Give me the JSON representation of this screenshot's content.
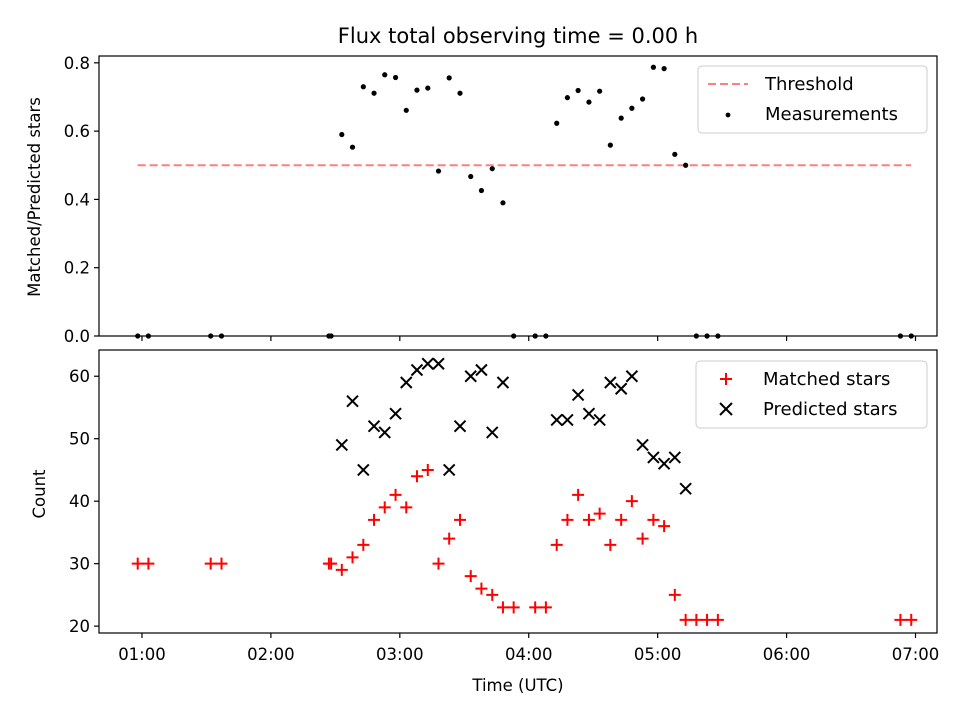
{
  "chart_data": [
    {
      "type": "scatter",
      "title": "Flux total observing time = 0.00 h",
      "xlabel": "",
      "ylabel": "Matched/Predicted stars",
      "ylim": [
        0,
        0.82
      ],
      "yticks": [
        0.0,
        0.2,
        0.4,
        0.6,
        0.8
      ],
      "ytick_labels": [
        "0.0",
        "0.2",
        "0.4",
        "0.6",
        "0.8"
      ],
      "xlim": [
        0.6667,
        7.1667
      ],
      "xticks": [
        1,
        2,
        3,
        4,
        5,
        6,
        7
      ],
      "legend_position": "top-right",
      "threshold": {
        "name": "Threshold",
        "value": 0.5,
        "x": [
          0.9667,
          6.9667
        ],
        "color": "#ff7f7f"
      },
      "series": [
        {
          "name": "Measurements",
          "color": "#000000",
          "x": [
            0.967,
            1.05,
            1.533,
            1.617,
            2.45,
            2.467,
            2.55,
            2.633,
            2.717,
            2.8,
            2.883,
            2.967,
            3.05,
            3.133,
            3.217,
            3.3,
            3.383,
            3.467,
            3.55,
            3.633,
            3.717,
            3.8,
            3.883,
            4.05,
            4.133,
            4.217,
            4.3,
            4.383,
            4.467,
            4.55,
            4.633,
            4.717,
            4.8,
            4.883,
            4.967,
            5.05,
            5.133,
            5.217,
            5.3,
            5.383,
            5.467,
            6.883,
            6.967
          ],
          "y": [
            0.0,
            0.0,
            0.0,
            0.0,
            0.0,
            0.0,
            0.59,
            0.553,
            0.73,
            0.711,
            0.765,
            0.757,
            0.661,
            0.72,
            0.726,
            0.483,
            0.756,
            0.711,
            0.467,
            0.426,
            0.49,
            0.39,
            0.0,
            0.0,
            0.0,
            0.623,
            0.698,
            0.719,
            0.685,
            0.717,
            0.559,
            0.638,
            0.667,
            0.694,
            0.787,
            0.783,
            0.532,
            0.5,
            0.0,
            0.0,
            0.0,
            0.0,
            0.0
          ]
        }
      ]
    },
    {
      "type": "scatter",
      "title": "",
      "xlabel": "Time (UTC)",
      "ylabel": "Count",
      "ylim": [
        18.9,
        64.2
      ],
      "yticks": [
        20,
        30,
        40,
        50,
        60
      ],
      "ytick_labels": [
        "20",
        "30",
        "40",
        "50",
        "60"
      ],
      "xlim": [
        0.6667,
        7.1667
      ],
      "xticks": [
        1,
        2,
        3,
        4,
        5,
        6,
        7
      ],
      "xtick_labels": [
        "01:00",
        "02:00",
        "03:00",
        "04:00",
        "05:00",
        "06:00",
        "07:00"
      ],
      "legend_position": "top-right",
      "series": [
        {
          "name": "Matched stars",
          "marker": "plus",
          "color": "#ff0000",
          "x": [
            0.967,
            1.05,
            1.533,
            1.617,
            2.45,
            2.467,
            2.55,
            2.633,
            2.717,
            2.8,
            2.883,
            2.967,
            3.05,
            3.133,
            3.217,
            3.3,
            3.383,
            3.467,
            3.55,
            3.633,
            3.717,
            3.8,
            3.883,
            4.05,
            4.133,
            4.217,
            4.3,
            4.383,
            4.467,
            4.55,
            4.633,
            4.717,
            4.8,
            4.883,
            4.967,
            5.05,
            5.133,
            5.217,
            5.3,
            5.383,
            5.467,
            6.883,
            6.967
          ],
          "y": [
            30,
            30,
            30,
            30,
            30,
            30,
            29,
            31,
            33,
            37,
            39,
            41,
            39,
            44,
            45,
            30,
            34,
            37,
            28,
            26,
            25,
            23,
            23,
            23,
            23,
            33,
            37,
            41,
            37,
            38,
            33,
            37,
            40,
            34,
            37,
            36,
            25,
            21,
            21,
            21,
            21,
            21,
            21
          ]
        },
        {
          "name": "Predicted stars",
          "marker": "x",
          "color": "#000000",
          "x": [
            2.55,
            2.633,
            2.717,
            2.8,
            2.883,
            2.967,
            3.05,
            3.133,
            3.217,
            3.3,
            3.383,
            3.467,
            3.55,
            3.633,
            3.717,
            3.8,
            4.217,
            4.3,
            4.383,
            4.467,
            4.55,
            4.633,
            4.717,
            4.8,
            4.883,
            4.967,
            5.05,
            5.133,
            5.217
          ],
          "y": [
            49,
            56,
            45,
            52,
            51,
            54,
            59,
            61,
            62,
            62,
            45,
            52,
            60,
            61,
            51,
            59,
            53,
            53,
            57,
            54,
            53,
            59,
            58,
            60,
            49,
            47,
            46,
            47,
            42
          ]
        }
      ]
    }
  ]
}
